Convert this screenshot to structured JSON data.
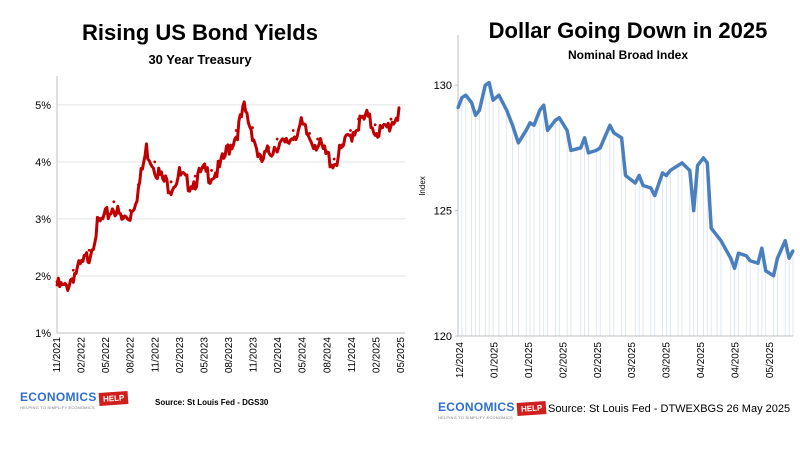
{
  "chart_data": [
    {
      "type": "line",
      "title": "Rising US Bond Yields",
      "subtitle": "30 Year Treasury",
      "x_tick_labels": [
        "11/2021",
        "02/2022",
        "05/2022",
        "08/2022",
        "11/2022",
        "02/2023",
        "05/2023",
        "08/2023",
        "11/2023",
        "02/2024",
        "05/2024",
        "08/2024",
        "11/2024",
        "02/2025",
        "05/2025"
      ],
      "y_tick_labels": [
        "1%",
        "2%",
        "3%",
        "4%",
        "5%"
      ],
      "ylim": [
        1,
        5.4
      ],
      "grid": "horizontal",
      "series": [
        {
          "color": "#c00000",
          "x": [
            "2021-11",
            "2021-12",
            "2022-01",
            "2022-02",
            "2022-03",
            "2022-04",
            "2022-05",
            "2022-06",
            "2022-07",
            "2022-08",
            "2022-09",
            "2022-10",
            "2022-11",
            "2022-12",
            "2023-01",
            "2023-02",
            "2023-03",
            "2023-04",
            "2023-05",
            "2023-06",
            "2023-07",
            "2023-08",
            "2023-09",
            "2023-10",
            "2023-11",
            "2023-12",
            "2024-01",
            "2024-02",
            "2024-03",
            "2024-04",
            "2024-05",
            "2024-06",
            "2024-07",
            "2024-08",
            "2024-09",
            "2024-10",
            "2024-11",
            "2024-12",
            "2025-01",
            "2025-02",
            "2025-03",
            "2025-04",
            "2025-05"
          ],
          "values": [
            1.9,
            1.85,
            2.1,
            2.25,
            2.45,
            2.95,
            3.1,
            3.3,
            3.05,
            3.15,
            3.6,
            4.3,
            4.0,
            3.75,
            3.65,
            3.85,
            3.7,
            3.75,
            3.9,
            3.85,
            3.95,
            4.3,
            4.55,
            5.0,
            4.6,
            4.05,
            4.25,
            4.4,
            4.35,
            4.55,
            4.7,
            4.5,
            4.4,
            4.2,
            4.05,
            4.3,
            4.55,
            4.75,
            4.85,
            4.65,
            4.6,
            4.75,
            4.95
          ]
        }
      ],
      "source": "Source: St Louis Fed - DGS30",
      "logo": {
        "word": "ECONOMICS",
        "tag": "HELP",
        "strap": "HELPING TO SIMPLIFY ECONOMICS"
      }
    },
    {
      "type": "line",
      "title": "Dollar Going Down in 2025",
      "subtitle": "Nominal Broad Index",
      "ylabel": "Index",
      "x_tick_labels": [
        "12/2024",
        "01/2025",
        "01/2025",
        "02/2025",
        "02/2025",
        "03/2025",
        "03/2025",
        "04/2025",
        "04/2025",
        "05/2025"
      ],
      "y_tick_labels": [
        "120",
        "125",
        "130"
      ],
      "ylim": [
        120,
        132
      ],
      "series": [
        {
          "color": "#4a7fbf",
          "x": [
            "2024-12-02",
            "2024-12-04",
            "2024-12-06",
            "2024-12-09",
            "2024-12-11",
            "2024-12-13",
            "2024-12-16",
            "2024-12-18",
            "2024-12-20",
            "2024-12-23",
            "2024-12-27",
            "2024-12-30",
            "2025-01-02",
            "2025-01-06",
            "2025-01-08",
            "2025-01-10",
            "2025-01-13",
            "2025-01-15",
            "2025-01-17",
            "2025-01-21",
            "2025-01-23",
            "2025-01-27",
            "2025-01-29",
            "2025-02-03",
            "2025-02-05",
            "2025-02-07",
            "2025-02-11",
            "2025-02-13",
            "2025-02-18",
            "2025-02-20",
            "2025-02-24",
            "2025-02-26",
            "2025-03-03",
            "2025-03-05",
            "2025-03-07",
            "2025-03-11",
            "2025-03-13",
            "2025-03-17",
            "2025-03-19",
            "2025-03-21",
            "2025-03-25",
            "2025-03-27",
            "2025-03-31",
            "2025-04-02",
            "2025-04-04",
            "2025-04-07",
            "2025-04-09",
            "2025-04-11",
            "2025-04-14",
            "2025-04-16",
            "2025-04-21",
            "2025-04-23",
            "2025-04-25",
            "2025-04-29",
            "2025-05-01",
            "2025-05-05",
            "2025-05-07",
            "2025-05-09",
            "2025-05-13",
            "2025-05-15",
            "2025-05-19",
            "2025-05-21",
            "2025-05-23"
          ],
          "values": [
            129.1,
            129.5,
            129.6,
            129.3,
            128.8,
            129.0,
            130.0,
            130.1,
            129.4,
            129.6,
            129.0,
            128.4,
            127.7,
            128.2,
            128.5,
            128.4,
            129.0,
            129.2,
            128.2,
            128.6,
            128.7,
            128.2,
            127.4,
            127.5,
            127.9,
            127.3,
            127.4,
            127.5,
            128.4,
            128.1,
            127.9,
            126.4,
            126.1,
            126.4,
            126.0,
            125.9,
            125.6,
            126.5,
            126.4,
            126.6,
            126.8,
            126.9,
            126.6,
            125.0,
            126.8,
            127.1,
            126.9,
            124.3,
            124.0,
            123.8,
            123.1,
            122.7,
            123.3,
            123.2,
            123.0,
            122.9,
            123.5,
            122.6,
            122.4,
            123.1,
            123.8,
            123.1,
            123.4
          ]
        }
      ],
      "source": "Source: St Louis Fed - DTWEXBGS 26 May 2025",
      "logo": {
        "word": "ECONOMICS",
        "tag": "HELP",
        "strap": "HELPING TO SIMPLIFY ECONOMICS"
      }
    }
  ]
}
